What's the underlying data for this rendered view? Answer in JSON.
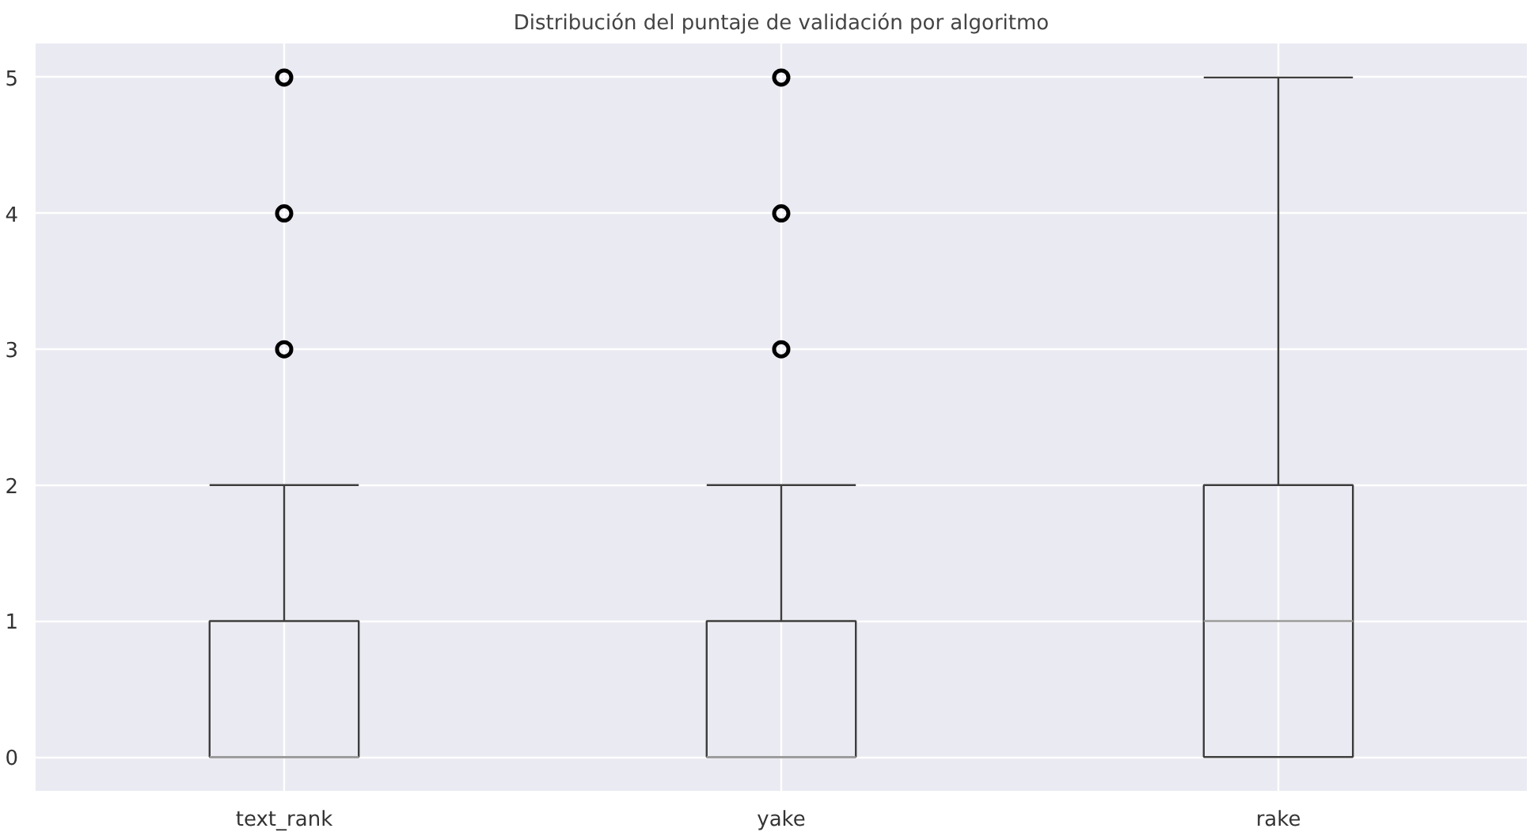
{
  "chart_data": {
    "type": "box",
    "title": "Distribución del puntaje de validación por algoritmo",
    "categories": [
      "text_rank",
      "yake",
      "rake"
    ],
    "boxes": [
      {
        "low": 0,
        "q1": 0,
        "median": 0,
        "q3": 1,
        "high": 2,
        "outliers": [
          3,
          4,
          5
        ]
      },
      {
        "low": 0,
        "q1": 0,
        "median": 0,
        "q3": 1,
        "high": 2,
        "outliers": [
          3,
          4,
          5
        ]
      },
      {
        "low": 0,
        "q1": 0,
        "median": 1,
        "q3": 2,
        "high": 5
      }
    ],
    "color": "#3d3d3d",
    "ylim": [
      -0.25,
      5.25
    ],
    "yticks": [
      0,
      1,
      2,
      3,
      4,
      5
    ],
    "grid": true,
    "marker": "circle"
  }
}
